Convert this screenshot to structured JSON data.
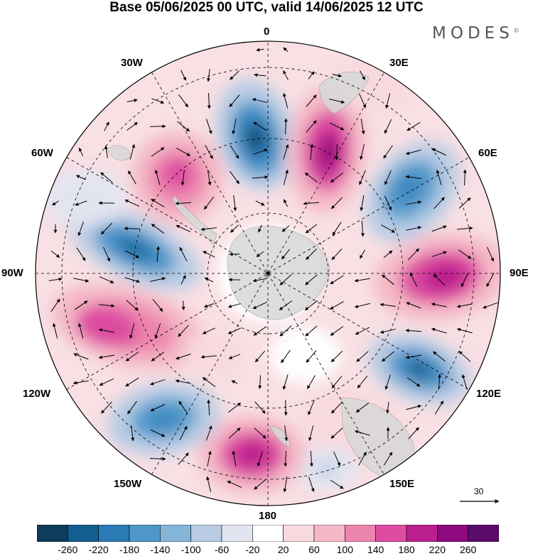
{
  "title": "Base 05/06/2025 00 UTC, valid 14/06/2025 12 UTC",
  "brand": "MODES",
  "brand_mark": "©",
  "longitude_labels": {
    "lon_0": "0",
    "lon_30e": "30E",
    "lon_60e": "60E",
    "lon_90e": "90E",
    "lon_120e": "120E",
    "lon_150e": "150E",
    "lon_180": "180",
    "lon_150w": "150W",
    "lon_120w": "120W",
    "lon_90w": "90W",
    "lon_60w": "60W",
    "lon_30w": "30W"
  },
  "reference_vector": "30",
  "colorbar": {
    "ticks": [
      "-260",
      "-220",
      "-180",
      "-140",
      "-100",
      "-60",
      "-20",
      "20",
      "60",
      "100",
      "140",
      "180",
      "220",
      "260"
    ],
    "colors": [
      "#0d3c5c",
      "#115e8f",
      "#2a7ab5",
      "#4f97c9",
      "#86b5da",
      "#b9cce4",
      "#e2e4f0",
      "#ffffff",
      "#f8d9de",
      "#f4b8c6",
      "#ec85ae",
      "#dd4ca0",
      "#bb1f8d",
      "#8e097d",
      "#5a0b6b"
    ]
  },
  "colors": {
    "land": "#d8d8d8",
    "coast": "#9a9a9a",
    "grid": "#000000"
  },
  "projection": "south-polar-stereographic"
}
